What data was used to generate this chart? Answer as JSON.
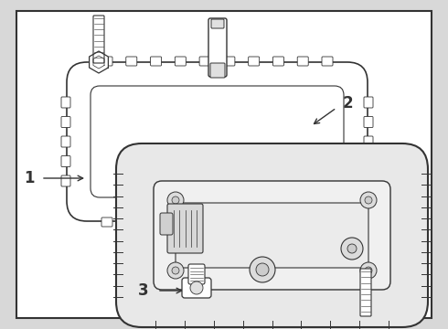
{
  "bg_color": "#d8d8d8",
  "panel_bg": "#ffffff",
  "line_color": "#333333",
  "label_1": "1",
  "label_2": "2",
  "label_3": "3",
  "fig_width": 4.9,
  "fig_height": 3.6,
  "dpi": 100
}
